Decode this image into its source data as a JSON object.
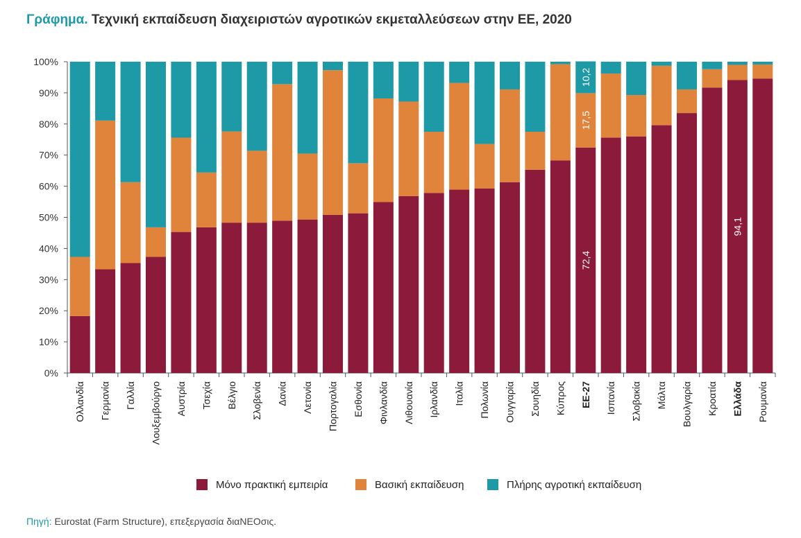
{
  "title": {
    "lead": "Γράφημα.",
    "text": "Τεχνική εκπαίδευση διαχειριστών αγροτικών εκμεταλλεύσεων στην ΕΕ, 2020"
  },
  "source": {
    "lead": "Πηγή:",
    "text": "Eurostat (Farm Structure), επεξεργασία διαNEOσις."
  },
  "chart_data": {
    "type": "bar",
    "stacked": true,
    "ylim": [
      0,
      100
    ],
    "yticks": [
      "0%",
      "10%",
      "20%",
      "30%",
      "40%",
      "50%",
      "60%",
      "70%",
      "80%",
      "90%",
      "100%"
    ],
    "grid": false,
    "legend_position": "bottom",
    "categories": [
      "Ολλανδία",
      "Γερμανία",
      "Γαλλία",
      "Λουξεμβούργο",
      "Αυστρία",
      "Τσεχία",
      "Βέλγιο",
      "Σλοβενία",
      "Δανία",
      "Λετονία",
      "Πορτογαλία",
      "Εσθονία",
      "Φινλανδία",
      "Λιθουανία",
      "Ιρλανδία",
      "Ιταλία",
      "Πολωνία",
      "Ουγγαρία",
      "Σουηδία",
      "Κύπρος",
      "ΕΕ-27",
      "Ισπανία",
      "Σλοβακία",
      "Μάλτα",
      "Βουλγαρία",
      "Κροατία",
      "Ελλάδα",
      "Ρουμανία"
    ],
    "bold_categories": [
      "ΕΕ-27",
      "Ελλάδα"
    ],
    "series": [
      {
        "name": "Μόνο πρακτική εμπειρία",
        "color": "#8c1a3a",
        "values": [
          18.3,
          33.3,
          35.3,
          37.3,
          45.3,
          46.8,
          48.3,
          48.3,
          48.9,
          49.3,
          50.8,
          51.3,
          54.9,
          56.8,
          57.8,
          58.9,
          59.3,
          61.3,
          65.3,
          68.3,
          72.4,
          75.6,
          76.0,
          79.6,
          83.5,
          91.7,
          94.1,
          94.6
        ]
      },
      {
        "name": "Βασική εκπαίδευση",
        "color": "#e0843c",
        "values": [
          19.0,
          47.8,
          26.0,
          9.5,
          30.3,
          17.6,
          29.3,
          23.1,
          43.9,
          21.2,
          46.5,
          16.1,
          33.3,
          30.4,
          19.7,
          34.3,
          14.3,
          29.8,
          12.2,
          30.9,
          17.5,
          20.6,
          13.3,
          19.1,
          7.6,
          5.9,
          4.9,
          4.5
        ]
      },
      {
        "name": "Πλήρης αγροτική εκπαίδευση",
        "color": "#1d9aa6",
        "values": [
          62.7,
          18.9,
          38.7,
          53.2,
          24.4,
          35.6,
          22.4,
          28.6,
          7.2,
          29.5,
          2.7,
          32.6,
          11.8,
          12.8,
          22.5,
          6.8,
          26.4,
          8.9,
          22.5,
          0.8,
          10.2,
          3.8,
          10.7,
          1.3,
          8.9,
          2.4,
          1.0,
          0.9
        ]
      }
    ],
    "data_labels": [
      {
        "category": "ΕΕ-27",
        "series": 0,
        "text": "72,4"
      },
      {
        "category": "ΕΕ-27",
        "series": 1,
        "text": "17,5"
      },
      {
        "category": "ΕΕ-27",
        "series": 2,
        "text": "10,2"
      },
      {
        "category": "Ελλάδα",
        "series": 0,
        "text": "94,1"
      }
    ]
  }
}
